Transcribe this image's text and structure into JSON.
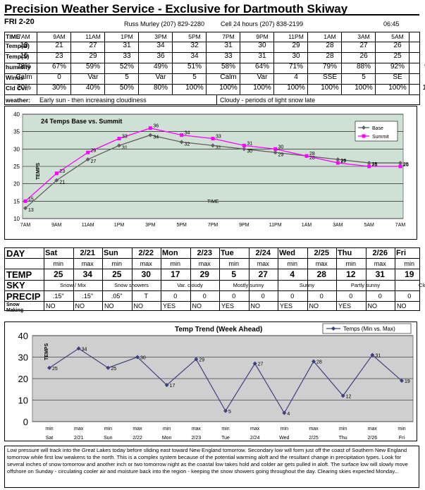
{
  "header": {
    "title": "Precision Weather Service - Exclusive for Dartmouth Skiway",
    "date": "FRI 2-20",
    "contact": "Russ Murley (207) 829-2280",
    "cell": "Cell 24 hours (207) 838-2199",
    "time": "06:45"
  },
  "hourly": {
    "labels": {
      "time": "TIME",
      "tempb": "Temp(B)",
      "temps": "Temp(S)",
      "hum": "humidity",
      "winds": "Winds",
      "cld": "Cld Cvr.",
      "weather": "weather:"
    },
    "times": [
      "7AM",
      "9AM",
      "11AM",
      "1PM",
      "3PM",
      "5PM",
      "7PM",
      "9PM",
      "11PM",
      "1AM",
      "3AM",
      "5AM",
      "7AM"
    ],
    "tempb": [
      "13",
      "21",
      "27",
      "31",
      "34",
      "32",
      "31",
      "30",
      "29",
      "28",
      "27",
      "26",
      "26"
    ],
    "temps": [
      "15",
      "23",
      "29",
      "33",
      "36",
      "34",
      "33",
      "31",
      "30",
      "28",
      "26",
      "25",
      "25"
    ],
    "hum": [
      "78%",
      "67%",
      "59%",
      "52%",
      "49%",
      "51%",
      "58%",
      "64%",
      "71%",
      "79%",
      "88%",
      "92%",
      "96%"
    ],
    "winds": [
      "Calm",
      "0",
      "Var",
      "5",
      "Var",
      "5",
      "Calm",
      "Var",
      "4",
      "SSE",
      "5",
      "SE",
      "5"
    ],
    "cld": [
      "20%",
      "30%",
      "40%",
      "50%",
      "80%",
      "100%",
      "100%",
      "100%",
      "100%",
      "100%",
      "100%",
      "100%",
      "100%"
    ],
    "weather1": "Early sun - then increasing cloudiness",
    "weather2": "Cloudy - periods of light snow late"
  },
  "chart_data": [
    {
      "type": "line",
      "title": "24 Temps Base vs. Summit",
      "xlabel": "TIME",
      "ylabel": "TEMPS",
      "ylim": [
        10,
        40
      ],
      "grid": true,
      "legend": "top-right",
      "categories": [
        "7AM",
        "9AM",
        "11AM",
        "1PM",
        "3PM",
        "5PM",
        "7PM",
        "9PM",
        "11PM",
        "1AM",
        "3AM",
        "5AM",
        "7AM"
      ],
      "series": [
        {
          "name": "Base",
          "color": "#606060",
          "values": [
            13,
            21,
            27,
            31,
            34,
            32,
            31,
            30,
            29,
            28,
            27,
            26,
            26
          ]
        },
        {
          "name": "Summit",
          "color": "#ff00ff",
          "values": [
            15,
            23,
            29,
            33,
            36,
            34,
            33,
            31,
            30,
            28,
            26,
            25,
            25
          ]
        }
      ]
    },
    {
      "type": "line",
      "title": "Temp Trend (Week Ahead)",
      "ylabel": "TEMPS",
      "ylim": [
        0,
        40
      ],
      "grid": true,
      "legend": "top-right",
      "categories": [
        "min Sat",
        "max 2/21",
        "min Sun",
        "max 2/22",
        "min Mon",
        "max 2/23",
        "min Tue",
        "max 2/24",
        "min Wed",
        "max 2/25",
        "min Thu",
        "max 2/26",
        "min Fri"
      ],
      "series": [
        {
          "name": "Temps (Min vs. Max)",
          "color": "#404080",
          "values": [
            25,
            34,
            25,
            30,
            17,
            29,
            5,
            27,
            4,
            28,
            12,
            31,
            19
          ]
        }
      ]
    }
  ],
  "week": {
    "labels": {
      "day": "DAY",
      "temp": "TEMP",
      "sky": "SKY",
      "precip": "PRECIP",
      "snow": "Snow",
      "making": "Making"
    },
    "days": [
      {
        "d": "Sat",
        "dt": "2/21"
      },
      {
        "d": "Sun",
        "dt": "2/22"
      },
      {
        "d": "Mon",
        "dt": "2/23"
      },
      {
        "d": "Tue",
        "dt": "2/24"
      },
      {
        "d": "Wed",
        "dt": "2/25"
      },
      {
        "d": "Thu",
        "dt": "2/26"
      },
      {
        "d": "Fri",
        "dt": ""
      }
    ],
    "minmax": [
      "min",
      "max",
      "min",
      "max",
      "min",
      "max",
      "min",
      "max",
      "min",
      "max",
      "min",
      "max",
      "min"
    ],
    "temps": [
      "25",
      "34",
      "25",
      "30",
      "17",
      "29",
      "5",
      "27",
      "4",
      "28",
      "12",
      "31",
      "19"
    ],
    "sky": [
      "Snow / Mix",
      "Snow showers",
      "Var. cloudy",
      "Mostly sunny",
      "Sunny",
      "Partly sunny",
      "Cldy"
    ],
    "precip": [
      ".15\"",
      ".15\"",
      ".05\"",
      "T",
      "0",
      "0",
      "0",
      "0",
      "0",
      "0",
      "0",
      "0",
      "0"
    ],
    "snow": [
      "NO",
      "NO",
      "NO",
      "NO",
      "YES",
      "NO",
      "YES",
      "NO",
      "YES",
      "NO",
      "YES",
      "NO",
      "NO"
    ]
  },
  "forecast": "Low pressure will track into the Great Lakes today before sliding east toward New England tomorrow. Secondary low will form just off the coast of Southern New England tomorrow while first low weakens to the north. This is a complex system because of the potential warming aloft and the resultant change in precipitation types. Look for several inches of snow tomorrow and another inch or two tomorrow night as the coastal low takes hold and colder air gets pulled in aloft. The surface low will slowly move offshore on Sunday - circulating cooler air and moisture back into the region - keeping the snow showers going throughout the day. Clearing skies expected Monday..."
}
